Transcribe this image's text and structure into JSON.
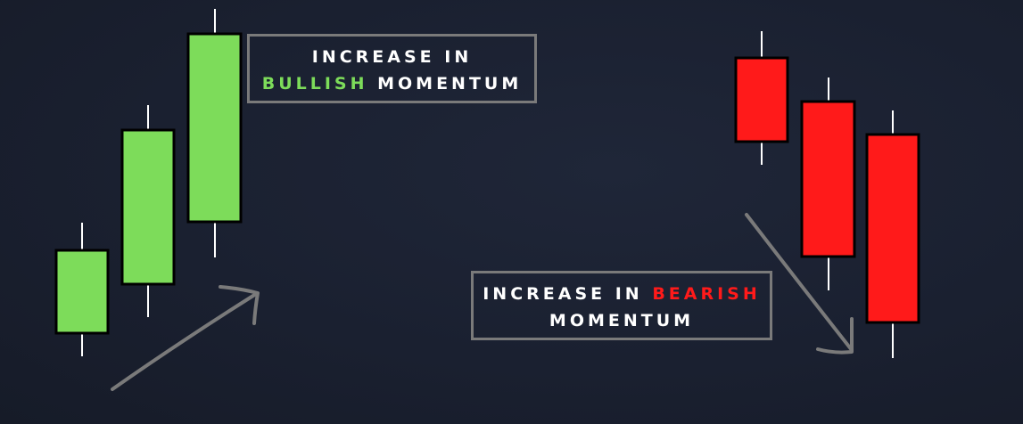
{
  "bullish_label": {
    "line1": "INCREASE IN",
    "highlight": "BULLISH",
    "rest": " MOMENTUM"
  },
  "bearish_label": {
    "prefix": "INCREASE IN ",
    "highlight": "BEARISH",
    "line2": "MOMENTUM"
  },
  "colors": {
    "bullish": "#7ddc5a",
    "bearish": "#ff1a1a",
    "wick": "#ffffff",
    "arrow": "#7a7a7a",
    "box_border": "#7a7a7a"
  },
  "candles": {
    "bullish_count": 3,
    "bearish_count": 3
  }
}
